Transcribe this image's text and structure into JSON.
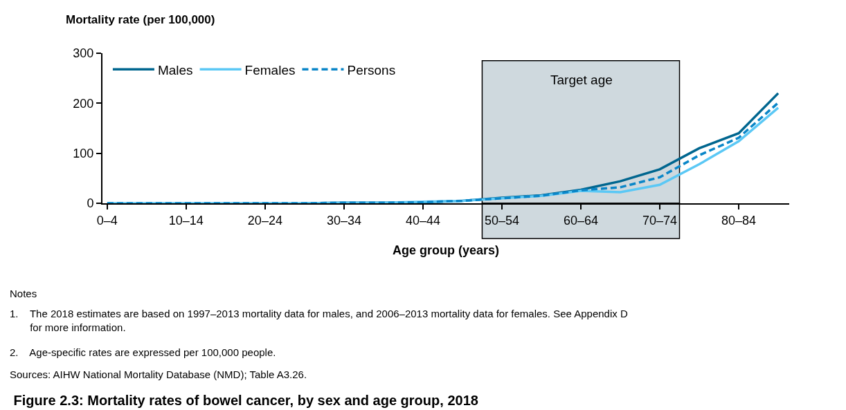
{
  "chart_data": {
    "type": "line",
    "title": "Figure 2.3: Mortality rates of bowel cancer, by sex and age group, 2018",
    "ylabel": "Mortality rate (per 100,000)",
    "xlabel": "Age group (years)",
    "categories": [
      "0–4",
      null,
      "10–14",
      null,
      "20–24",
      null,
      "30–34",
      null,
      "40–44",
      null,
      "50–54",
      null,
      "60–64",
      null,
      "70–74",
      null,
      "80–84",
      null
    ],
    "series": [
      {
        "name": "Males",
        "color": "#00668f",
        "line_style": "solid",
        "values": [
          null,
          null,
          null,
          null,
          null,
          0,
          1,
          1,
          2,
          5,
          11,
          16,
          27,
          44,
          68,
          110,
          140,
          220
        ]
      },
      {
        "name": "Females",
        "color": "#5bc8f5",
        "line_style": "solid",
        "values": [
          0,
          0,
          0,
          0,
          0,
          0,
          1,
          1,
          3,
          5,
          10,
          15,
          25,
          22,
          37,
          78,
          124,
          191
        ]
      },
      {
        "name": "Persons",
        "color": "#0a86c8",
        "line_style": "dashed",
        "values": [
          0,
          0,
          0,
          0,
          0,
          0,
          1,
          1,
          2,
          5,
          10,
          15,
          26,
          32,
          52,
          96,
          131,
          201
        ]
      }
    ],
    "ylim": [
      0,
      300
    ],
    "yticks": [
      0,
      100,
      200,
      300
    ],
    "bands": [
      {
        "axis": "x",
        "from": "50–54",
        "to": "70–74",
        "label": "Target age",
        "color": "#cfd9de"
      }
    ],
    "annotations": [
      "Notes",
      "1.    The 2018 estimates are based on 1997–2013 mortality data for males, and 2006–2013 mortality data for females. See Appendix D\n       for more information.",
      "2.    Age-specific rates are expressed per 100,000 people.",
      "Sources: AIHW National Mortality Database (NMD); Table A3.26."
    ],
    "grid": false,
    "legend": "top left",
    "marker": "none"
  }
}
